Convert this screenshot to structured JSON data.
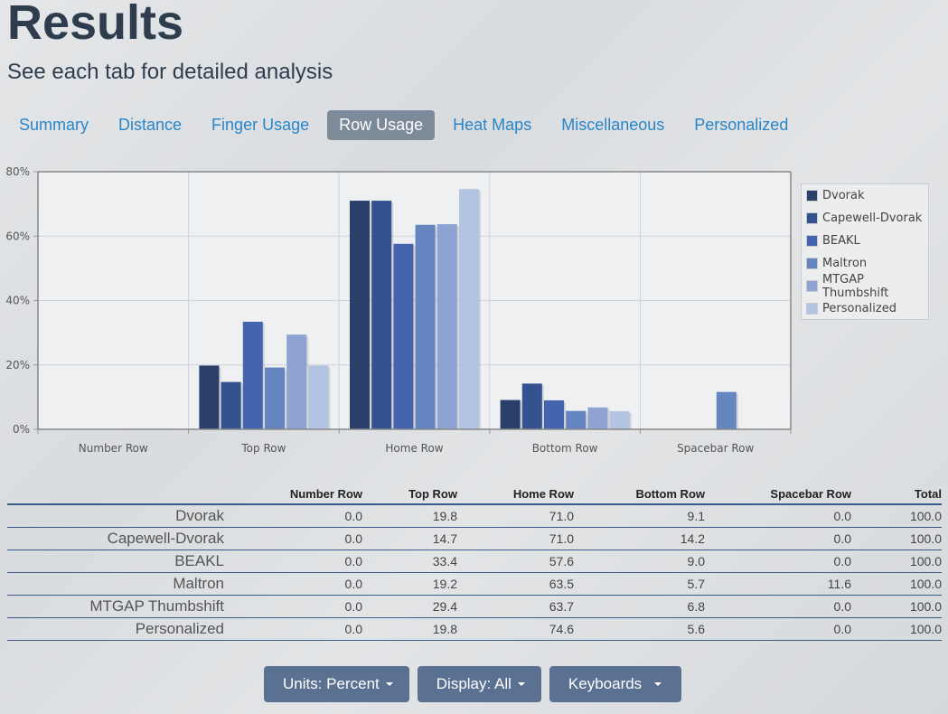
{
  "page": {
    "title": "Results",
    "subtitle": "See each tab for detailed analysis"
  },
  "tabs": [
    {
      "label": "Summary",
      "active": false
    },
    {
      "label": "Distance",
      "active": false
    },
    {
      "label": "Finger Usage",
      "active": false
    },
    {
      "label": "Row Usage",
      "active": true
    },
    {
      "label": "Heat Maps",
      "active": false
    },
    {
      "label": "Miscellaneous",
      "active": false
    },
    {
      "label": "Personalized",
      "active": false
    }
  ],
  "chart_data": {
    "type": "bar",
    "categories": [
      "Number Row",
      "Top Row",
      "Home Row",
      "Bottom Row",
      "Spacebar Row"
    ],
    "series": [
      {
        "name": "Dvorak",
        "color": "#2b3f6b",
        "values": [
          0.0,
          19.8,
          71.0,
          9.1,
          0.0
        ]
      },
      {
        "name": "Capewell-Dvorak",
        "color": "#33528f",
        "values": [
          0.0,
          14.7,
          71.0,
          14.2,
          0.0
        ]
      },
      {
        "name": "BEAKL",
        "color": "#4464ae",
        "values": [
          0.0,
          33.4,
          57.6,
          9.0,
          0.0
        ]
      },
      {
        "name": "Maltron",
        "color": "#6585c0",
        "values": [
          0.0,
          19.2,
          63.5,
          5.7,
          11.6
        ]
      },
      {
        "name": "MTGAP Thumbshift",
        "color": "#8ea3d1",
        "values": [
          0.0,
          29.4,
          63.7,
          6.8,
          0.0
        ]
      },
      {
        "name": "Personalized",
        "color": "#b3c3e3",
        "values": [
          0.0,
          19.8,
          74.6,
          5.6,
          0.0
        ]
      }
    ],
    "yticks": [
      "0%",
      "20%",
      "40%",
      "60%",
      "80%"
    ],
    "ylim": [
      0,
      80
    ],
    "grid": true,
    "legend_position": "right"
  },
  "table": {
    "headers": [
      "",
      "Number Row",
      "Top Row",
      "Home Row",
      "Bottom Row",
      "Spacebar Row",
      "Total"
    ],
    "rows": [
      {
        "name": "Dvorak",
        "cells": [
          "0.0",
          "19.8",
          "71.0",
          "9.1",
          "0.0",
          "100.0"
        ]
      },
      {
        "name": "Capewell-Dvorak",
        "cells": [
          "0.0",
          "14.7",
          "71.0",
          "14.2",
          "0.0",
          "100.0"
        ]
      },
      {
        "name": "BEAKL",
        "cells": [
          "0.0",
          "33.4",
          "57.6",
          "9.0",
          "0.0",
          "100.0"
        ]
      },
      {
        "name": "Maltron",
        "cells": [
          "0.0",
          "19.2",
          "63.5",
          "5.7",
          "11.6",
          "100.0"
        ]
      },
      {
        "name": "MTGAP Thumbshift",
        "cells": [
          "0.0",
          "29.4",
          "63.7",
          "6.8",
          "0.0",
          "100.0"
        ]
      },
      {
        "name": "Personalized",
        "cells": [
          "0.0",
          "19.8",
          "74.6",
          "5.6",
          "0.0",
          "100.0"
        ]
      }
    ]
  },
  "buttons": [
    {
      "label": "Units: Percent",
      "icon": "caret-down-icon"
    },
    {
      "label": "Display: All",
      "icon": "caret-down-icon"
    },
    {
      "label": "Keyboards",
      "icon": "caret-down-icon"
    }
  ]
}
